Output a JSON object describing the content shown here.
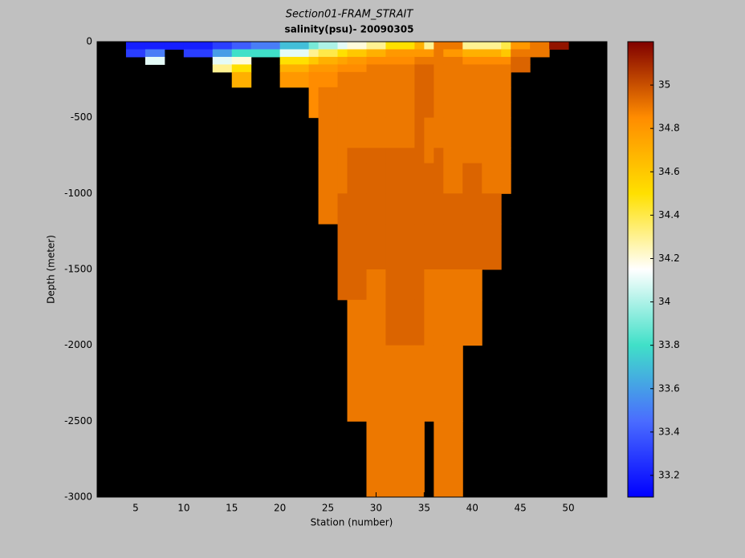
{
  "chart_data": {
    "type": "heatmap",
    "title": "Section01-FRAM_STRAIT",
    "subtitle": "salinity(psu)- 20090305",
    "xlabel": "Station (number)",
    "ylabel": "Depth (meter)",
    "xlim": [
      1,
      54
    ],
    "ylim": [
      -3000,
      0
    ],
    "xticks": [
      5,
      10,
      15,
      20,
      25,
      30,
      35,
      40,
      45,
      50
    ],
    "yticks": [
      0,
      -500,
      -1000,
      -1500,
      -2000,
      -2500,
      -3000
    ],
    "x_edges": [
      1,
      4,
      6,
      8,
      10,
      13,
      15,
      17,
      20,
      23,
      24,
      26,
      27,
      29,
      31,
      34,
      35,
      36,
      37,
      39,
      41,
      43,
      44,
      46,
      48,
      50,
      54
    ],
    "y_edges": [
      0,
      -50,
      -100,
      -150,
      -200,
      -300,
      -400,
      -500,
      -700,
      -800,
      -1000,
      -1200,
      -1500,
      -1700,
      -2000,
      -2500,
      -3000
    ],
    "z": [
      [
        null,
        33.2,
        33.2,
        33.2,
        33.2,
        33.3,
        33.4,
        33.5,
        33.7,
        33.9,
        34.0,
        34.1,
        34.2,
        34.3,
        34.5,
        34.7,
        34.3,
        34.9,
        34.9,
        34.3,
        34.3,
        34.4,
        34.8,
        34.9,
        35.15,
        null
      ],
      [
        null,
        33.3,
        33.5,
        null,
        33.3,
        33.6,
        33.8,
        33.8,
        34.1,
        34.3,
        34.4,
        34.5,
        34.6,
        34.7,
        34.8,
        34.8,
        34.8,
        34.9,
        34.8,
        34.7,
        34.7,
        34.6,
        34.9,
        34.9,
        null,
        null
      ],
      [
        null,
        null,
        34.1,
        null,
        null,
        34.1,
        34.2,
        null,
        34.5,
        34.6,
        34.7,
        34.75,
        34.8,
        34.85,
        34.85,
        34.9,
        34.9,
        34.9,
        34.9,
        34.85,
        34.85,
        34.85,
        34.95,
        null,
        null,
        null
      ],
      [
        null,
        null,
        null,
        null,
        null,
        34.3,
        34.5,
        null,
        34.7,
        34.8,
        34.8,
        34.85,
        34.85,
        34.9,
        34.9,
        34.95,
        34.95,
        34.9,
        34.9,
        34.9,
        34.9,
        34.9,
        34.95,
        null,
        null,
        null
      ],
      [
        null,
        null,
        null,
        null,
        null,
        null,
        34.7,
        null,
        34.8,
        34.85,
        34.85,
        34.9,
        34.9,
        34.9,
        34.9,
        34.95,
        34.95,
        34.9,
        34.9,
        34.9,
        34.9,
        34.9,
        null,
        null,
        null,
        null
      ],
      [
        null,
        null,
        null,
        null,
        null,
        null,
        null,
        null,
        null,
        34.85,
        34.9,
        34.9,
        34.9,
        34.9,
        34.9,
        34.95,
        34.95,
        34.9,
        34.9,
        34.9,
        34.9,
        34.9,
        null,
        null,
        null,
        null
      ],
      [
        null,
        null,
        null,
        null,
        null,
        null,
        null,
        null,
        null,
        34.85,
        34.9,
        34.9,
        34.9,
        34.9,
        34.9,
        34.95,
        34.95,
        34.9,
        34.9,
        34.9,
        34.9,
        34.9,
        null,
        null,
        null,
        null
      ],
      [
        null,
        null,
        null,
        null,
        null,
        null,
        null,
        null,
        null,
        null,
        34.9,
        34.9,
        34.9,
        34.9,
        34.9,
        34.95,
        34.9,
        34.9,
        34.9,
        34.9,
        34.9,
        34.9,
        null,
        null,
        null,
        null
      ],
      [
        null,
        null,
        null,
        null,
        null,
        null,
        null,
        null,
        null,
        null,
        34.9,
        34.9,
        34.95,
        34.95,
        34.95,
        34.95,
        34.9,
        34.95,
        34.9,
        34.9,
        34.9,
        34.9,
        null,
        null,
        null,
        null
      ],
      [
        null,
        null,
        null,
        null,
        null,
        null,
        null,
        null,
        null,
        null,
        34.9,
        34.9,
        34.95,
        34.95,
        34.95,
        34.95,
        34.95,
        34.95,
        34.9,
        34.95,
        34.9,
        34.9,
        null,
        null,
        null,
        null
      ],
      [
        null,
        null,
        null,
        null,
        null,
        null,
        null,
        null,
        null,
        null,
        34.9,
        34.95,
        34.95,
        34.95,
        34.95,
        34.95,
        34.95,
        34.95,
        34.95,
        34.95,
        34.95,
        null,
        null,
        null,
        null,
        null
      ],
      [
        null,
        null,
        null,
        null,
        null,
        null,
        null,
        null,
        null,
        null,
        null,
        34.95,
        34.95,
        34.95,
        34.95,
        34.95,
        34.95,
        34.95,
        34.95,
        34.95,
        34.95,
        null,
        null,
        null,
        null,
        null
      ],
      [
        null,
        null,
        null,
        null,
        null,
        null,
        null,
        null,
        null,
        null,
        null,
        34.95,
        34.95,
        34.9,
        34.95,
        34.95,
        34.9,
        34.9,
        34.9,
        34.9,
        null,
        null,
        null,
        null,
        null,
        null
      ],
      [
        null,
        null,
        null,
        null,
        null,
        null,
        null,
        null,
        null,
        null,
        null,
        null,
        34.9,
        34.9,
        34.95,
        34.95,
        34.9,
        34.9,
        34.9,
        34.9,
        null,
        null,
        null,
        null,
        null,
        null
      ],
      [
        null,
        null,
        null,
        null,
        null,
        null,
        null,
        null,
        null,
        null,
        null,
        null,
        34.9,
        34.9,
        34.9,
        34.9,
        34.9,
        34.9,
        34.9,
        null,
        null,
        null,
        null,
        null,
        null,
        null
      ],
      [
        null,
        null,
        null,
        null,
        null,
        null,
        null,
        null,
        null,
        null,
        null,
        null,
        null,
        34.9,
        34.9,
        34.9,
        null,
        34.9,
        34.9,
        null,
        null,
        null,
        null,
        null,
        null,
        null
      ]
    ],
    "clim": [
      33.1,
      35.2
    ],
    "cticks": [
      33.2,
      33.4,
      33.6,
      33.8,
      34,
      34.2,
      34.4,
      34.6,
      34.8,
      35
    ],
    "colormap": [
      "#0000ff",
      "#4a6cff",
      "#40e0c8",
      "#ffffff",
      "#ffe000",
      "#ff8c00",
      "#800000"
    ],
    "background": "#000000"
  }
}
